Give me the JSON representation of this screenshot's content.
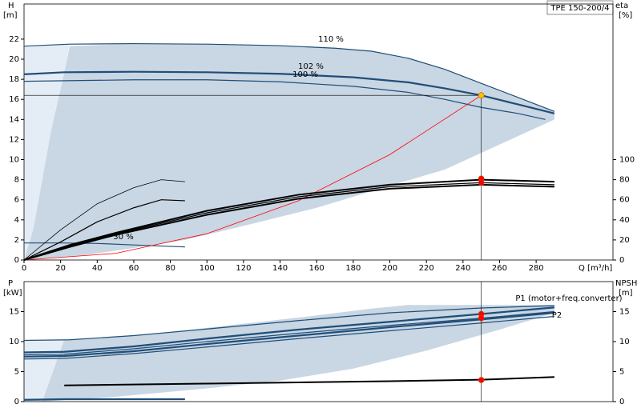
{
  "chart_data": [
    {
      "type": "line",
      "model": "TPE 150-200/4",
      "x_label": "Q [m³/h]",
      "y_label": "H",
      "y_unit": "[m]",
      "y2_label": "eta",
      "y2_unit": "[%]",
      "xlim": [
        0,
        322
      ],
      "ylim": [
        0,
        25.5
      ],
      "y2lim": [
        0,
        255
      ],
      "xticks": [
        0,
        20,
        40,
        60,
        80,
        100,
        120,
        140,
        160,
        180,
        200,
        220,
        240,
        260,
        280
      ],
      "yticks": [
        0,
        2,
        4,
        6,
        8,
        10,
        12,
        14,
        16,
        18,
        20,
        22
      ],
      "y2ticks": [
        0,
        20,
        40,
        60,
        80,
        100
      ],
      "areas": [
        {
          "color": "#e4edf6",
          "x": [
            0,
            0,
            25,
            20,
            10,
            5
          ],
          "y": [
            0,
            21.3,
            21.5,
            17,
            8,
            3
          ]
        },
        {
          "color": "#c9d6e3",
          "x": [
            0,
            5,
            10,
            15,
            20,
            25,
            60,
            100,
            140,
            170,
            190,
            210,
            230,
            250,
            270,
            290,
            290,
            260,
            230,
            200,
            160,
            120,
            88,
            60,
            30
          ],
          "y": [
            0,
            3,
            8,
            13,
            17,
            21.3,
            21.55,
            21.5,
            21.35,
            21.1,
            20.8,
            20.1,
            19.0,
            17.6,
            16.2,
            14.8,
            14.0,
            11.5,
            9.0,
            7.4,
            5.2,
            3.4,
            2.0,
            1.2,
            0.4
          ]
        }
      ],
      "series": [
        {
          "label": "110 %",
          "color": "#1f4e79",
          "width": 1.2,
          "x": [
            0,
            25,
            60,
            100,
            140,
            170,
            190,
            210,
            230,
            250,
            270,
            290
          ],
          "values": [
            21.3,
            21.5,
            21.55,
            21.5,
            21.35,
            21.1,
            20.8,
            20.1,
            19.0,
            17.6,
            16.2,
            14.8
          ]
        },
        {
          "label": "102 %",
          "color": "#1f4e79",
          "width": 2.2,
          "x": [
            0,
            22,
            60,
            100,
            140,
            180,
            210,
            230,
            250,
            270,
            290
          ],
          "values": [
            18.5,
            18.7,
            18.75,
            18.7,
            18.55,
            18.2,
            17.7,
            17.1,
            16.4,
            15.5,
            14.6
          ]
        },
        {
          "label": "100 %",
          "color": "#1f4e79",
          "width": 1.2,
          "x": [
            0,
            60,
            100,
            140,
            180,
            210,
            230,
            250,
            270,
            285
          ],
          "values": [
            17.8,
            17.95,
            17.95,
            17.75,
            17.3,
            16.7,
            16.0,
            15.2,
            14.6,
            14.0
          ]
        },
        {
          "label": "30 %",
          "color": "#1f4e79",
          "width": 1.2,
          "x": [
            0,
            20,
            40,
            60,
            88
          ],
          "values": [
            1.7,
            1.7,
            1.65,
            1.5,
            1.3
          ]
        },
        {
          "color": "#ff0000",
          "width": 0.8,
          "x": [
            0,
            50,
            100,
            150,
            200,
            250
          ],
          "values": [
            0,
            0.66,
            2.62,
            5.9,
            10.5,
            16.4
          ]
        },
        {
          "color": "#000000",
          "width": 2,
          "axis": "y2",
          "x": [
            0,
            25,
            50,
            100,
            150,
            200,
            250,
            290
          ],
          "values": [
            0,
            15,
            27,
            49,
            65,
            75,
            80,
            78
          ]
        },
        {
          "color": "#000000",
          "width": 1.2,
          "axis": "y2",
          "x": [
            0,
            25,
            50,
            100,
            150,
            200,
            250,
            290
          ],
          "values": [
            0,
            14,
            26,
            47,
            63,
            73,
            77,
            75
          ]
        },
        {
          "color": "#000000",
          "width": 2,
          "axis": "y2",
          "x": [
            0,
            25,
            50,
            100,
            150,
            200,
            250,
            290
          ],
          "values": [
            0,
            13,
            25,
            45,
            61,
            71,
            75,
            73
          ]
        },
        {
          "color": "#000000",
          "width": 0.8,
          "axis": "y2",
          "x": [
            0,
            20,
            40,
            60,
            75,
            88
          ],
          "values": [
            0,
            30,
            56,
            72,
            80,
            78
          ]
        },
        {
          "color": "#000000",
          "width": 1.2,
          "axis": "y2",
          "x": [
            0,
            20,
            40,
            60,
            75,
            88
          ],
          "values": [
            0,
            18,
            38,
            52,
            60,
            59
          ]
        }
      ],
      "points": [
        {
          "x": 250,
          "y": 16.4,
          "color": "#ffc000"
        },
        {
          "x": 250,
          "y": 81,
          "color": "#ff0000",
          "axis": "y2"
        },
        {
          "x": 250,
          "y": 77,
          "color": "#ff0000",
          "axis": "y2"
        }
      ]
    },
    {
      "type": "line",
      "y_label": "P",
      "y_unit": "[kW]",
      "y2_label": "NPSH",
      "y2_unit": "[m]",
      "xlim": [
        0,
        322
      ],
      "ylim": [
        0,
        20
      ],
      "y2lim": [
        0,
        20
      ],
      "yticks": [
        0,
        5,
        10,
        15
      ],
      "y2ticks": [
        0,
        5,
        10,
        15
      ],
      "areas": [
        {
          "color": "#e4edf6",
          "x": [
            0,
            0,
            22,
            18,
            10
          ],
          "y": [
            0,
            10.3,
            10.3,
            5,
            0
          ]
        },
        {
          "color": "#c9d6e3",
          "x": [
            10,
            22,
            60,
            100,
            150,
            190,
            210,
            290,
            290,
            260,
            220,
            180,
            140,
            100,
            50,
            20
          ],
          "y": [
            0,
            10.3,
            11.0,
            12.3,
            14.0,
            15.5,
            16.1,
            16.1,
            14.8,
            12.0,
            8.5,
            5.5,
            3.5,
            2.2,
            0.8,
            0.2
          ]
        }
      ],
      "series": [
        {
          "color": "#1f4e79",
          "width": 1.2,
          "x": [
            0,
            25,
            60,
            100,
            150,
            200,
            250,
            290
          ],
          "values": [
            10.2,
            10.3,
            11.0,
            12.1,
            13.5,
            14.8,
            15.6,
            16.0
          ]
        },
        {
          "label": "P1 (motor+freq.converter)",
          "color": "#1f4e79",
          "width": 2.2,
          "x": [
            0,
            22,
            60,
            100,
            150,
            200,
            250,
            290
          ],
          "values": [
            8.2,
            8.3,
            9.2,
            10.5,
            12.0,
            13.3,
            14.6,
            15.7
          ]
        },
        {
          "color": "#1f4e79",
          "width": 1.2,
          "x": [
            0,
            22,
            60,
            100,
            150,
            200,
            250,
            290
          ],
          "values": [
            7.8,
            7.9,
            8.8,
            10.0,
            11.4,
            12.7,
            13.9,
            15.0
          ]
        },
        {
          "label": "P2",
          "color": "#1f4e79",
          "width": 2.2,
          "x": [
            0,
            22,
            60,
            100,
            150,
            200,
            250,
            290
          ],
          "values": [
            7.5,
            7.6,
            8.4,
            9.6,
            11.0,
            12.4,
            13.7,
            14.8
          ]
        },
        {
          "color": "#1f4e79",
          "width": 1.2,
          "x": [
            0,
            22,
            60,
            100,
            150,
            200,
            250,
            290
          ],
          "values": [
            7.1,
            7.2,
            8.0,
            9.1,
            10.5,
            11.8,
            13.1,
            14.2
          ]
        },
        {
          "color": "#1f4e79",
          "width": 2.2,
          "x": [
            0,
            22,
            88
          ],
          "values": [
            0.3,
            0.4,
            0.4
          ]
        },
        {
          "color": "#000000",
          "width": 2,
          "axis": "y2",
          "x": [
            22,
            100,
            200,
            250,
            290
          ],
          "values": [
            2.7,
            3.0,
            3.4,
            3.65,
            4.1
          ]
        }
      ],
      "points": [
        {
          "x": 250,
          "y": 14.6,
          "color": "#ff0000"
        },
        {
          "x": 250,
          "y": 13.9,
          "color": "#ff0000"
        },
        {
          "x": 250,
          "y": 3.6,
          "color": "#ff0000",
          "axis": "y2"
        }
      ]
    }
  ]
}
